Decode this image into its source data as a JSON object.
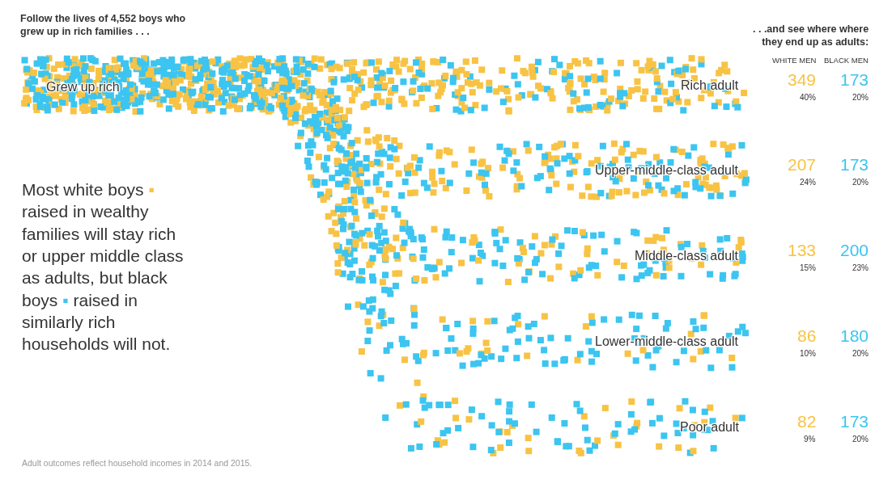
{
  "chart_data": {
    "type": "other",
    "title": "Follow the lives of 4,552 boys who grew up in rich families . . .",
    "subtitle": ". . .and see where where they end up as adults:",
    "categories": [
      "Rich adult",
      "Upper-middle-class adult",
      "Middle-class adult",
      "Lower-middle-class adult",
      "Poor adult"
    ],
    "series": [
      {
        "color": "#f8c344",
        "values": [
          349,
          207,
          133,
          86,
          82
        ]
      },
      {
        "color": "#3cc5f0",
        "values": [
          173,
          173,
          200,
          180,
          173
        ]
      }
    ],
    "data_labels": true,
    "annotations": [
      "WHITE MEN",
      "BLACK MEN",
      "Grew up rich",
      "Most white boys ▪ raised in wealthy families will stay rich or upper middle class as adults, but black boys ▪ raised in similarly rich households will not.",
      "40%",
      "20%",
      "24%",
      "20%",
      "15%",
      "23%",
      "10%",
      "20%",
      "9%",
      "20%",
      "Adult outcomes reflect household incomes in 2014 and 2015."
    ]
  }
}
